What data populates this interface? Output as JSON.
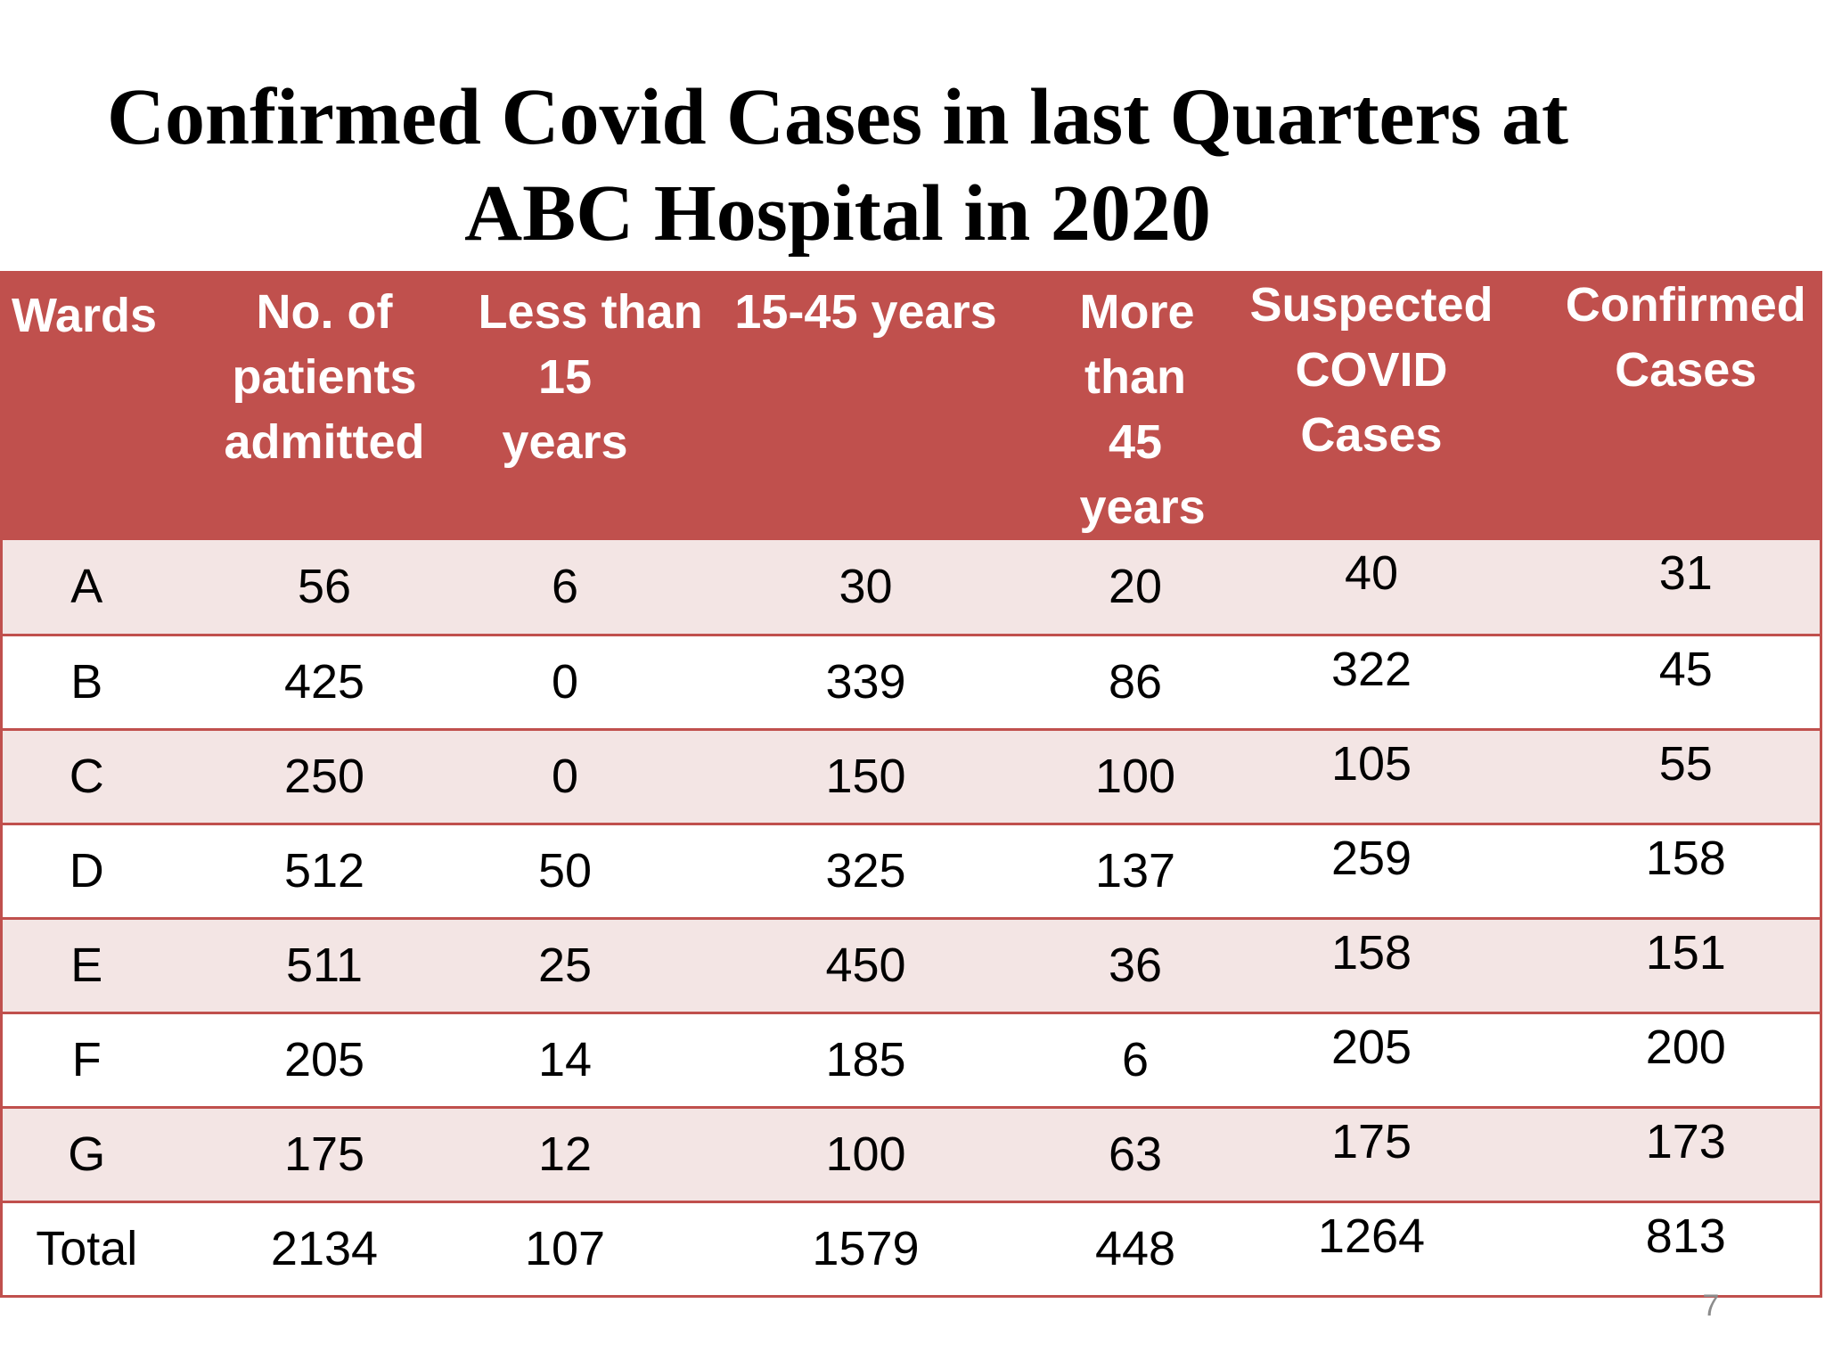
{
  "title": {
    "line1": "Confirmed Covid Cases in last Quarters at",
    "line2": "ABC Hospital in 2020"
  },
  "page_number": "7",
  "colors": {
    "header_background": "#c0504d",
    "header_text": "#ffffff",
    "row_alt_background": "#f3e5e4",
    "row_border": "#c0504d"
  },
  "chart_data": {
    "type": "table",
    "title": "Confirmed Covid Cases in last Quarters at ABC Hospital in 2020",
    "columns": [
      "Wards",
      "No. of patients admitted",
      "Less than 15 years",
      "15-45 years",
      "More than 45 years",
      "Suspected COVID Cases",
      "Confirmed Cases"
    ],
    "header_lines": [
      [
        "Wards"
      ],
      [
        "No. of",
        "patients",
        "admitted"
      ],
      [
        "Less than",
        "15",
        "years"
      ],
      [
        "15-45 years"
      ],
      [
        "More",
        "than",
        "45",
        "years"
      ],
      [
        "Suspected",
        "COVID",
        "Cases"
      ],
      [
        "Confirmed",
        "Cases"
      ]
    ],
    "rows": [
      [
        "A",
        "56",
        "6",
        "30",
        "20",
        "40",
        "31"
      ],
      [
        "B",
        "425",
        "0",
        "339",
        "86",
        "322",
        "45"
      ],
      [
        "C",
        "250",
        "0",
        "150",
        "100",
        "105",
        "55"
      ],
      [
        "D",
        "512",
        "50",
        "325",
        "137",
        "259",
        "158"
      ],
      [
        "E",
        "511",
        "25",
        "450",
        "36",
        "158",
        "151"
      ],
      [
        "F",
        "205",
        "14",
        "185",
        "6",
        "205",
        "200"
      ],
      [
        "G",
        "175",
        "12",
        "100",
        "63",
        "175",
        "173"
      ],
      [
        "Total",
        "2134",
        "107",
        "1579",
        "448",
        "1264",
        "813"
      ]
    ]
  }
}
